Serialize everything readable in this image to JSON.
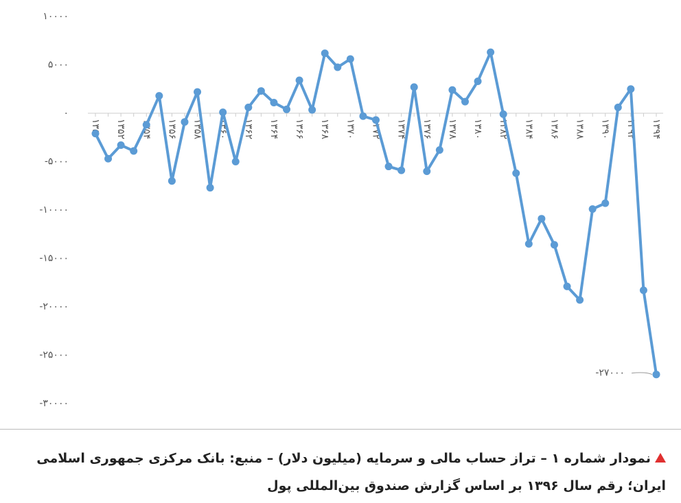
{
  "chart_data": {
    "type": "line",
    "categories": [
      "۱۳۵۰",
      null,
      "۱۳۵۲",
      null,
      "۱۳۵۴",
      null,
      "۱۳۵۶",
      null,
      "۱۳۵۸",
      null,
      "۱۳۶۰",
      null,
      "۱۳۶۲",
      null,
      "۱۳۶۴",
      null,
      "۱۳۶۶",
      null,
      "۱۳۶۸",
      null,
      "۱۳۷۰",
      null,
      "۱۳۷۲",
      null,
      "۱۳۷۴",
      null,
      "۱۳۷۶",
      null,
      "۱۳۷۸",
      null,
      "۱۳۸۰",
      null,
      "۱۳۸۲",
      null,
      "۱۳۸۴",
      null,
      "۱۳۸۶",
      null,
      "۱۳۸۸",
      null,
      "۱۳۹۰",
      null,
      "۱۳۹۲",
      null,
      "۱۳۹۴"
    ],
    "series": [
      {
        "color": "#5b9bd5",
        "values": [
          -2100,
          -4700,
          -3300,
          -3900,
          -1200,
          1800,
          -7000,
          -900,
          2200,
          -7700,
          100,
          -5000,
          600,
          2300,
          1100,
          400,
          3400,
          350,
          6200,
          4750,
          5600,
          -300,
          -700,
          -5500,
          -5900,
          2700,
          -6000,
          -3800,
          2400,
          1200,
          3300,
          6300,
          -100,
          -6200,
          -13500,
          -10900,
          -13600,
          -17900,
          -19300,
          -9900,
          -9300,
          600,
          2500,
          -18300,
          -27000
        ],
        "value_labels": [
          null,
          null,
          null,
          null,
          null,
          null,
          null,
          null,
          null,
          null,
          null,
          null,
          null,
          null,
          null,
          null,
          null,
          null,
          null,
          null,
          null,
          null,
          null,
          null,
          null,
          null,
          null,
          null,
          null,
          null,
          null,
          null,
          null,
          null,
          null,
          null,
          null,
          null,
          null,
          null,
          null,
          null,
          null,
          null,
          "-۲۷۰۰۰"
        ]
      }
    ],
    "ylim": [
      -30000,
      10000
    ],
    "yticks": [
      {
        "value": 10000,
        "label": "۱۰۰۰۰"
      },
      {
        "value": 5000,
        "label": "۵۰۰۰"
      },
      {
        "value": 0,
        "label": "۰"
      },
      {
        "value": -5000,
        "label": "-۵۰۰۰"
      },
      {
        "value": -10000,
        "label": "-۱۰۰۰۰"
      },
      {
        "value": -15000,
        "label": "-۱۵۰۰۰"
      },
      {
        "value": -20000,
        "label": "-۲۰۰۰۰"
      },
      {
        "value": -25000,
        "label": "-۲۵۰۰۰"
      },
      {
        "value": -30000,
        "label": "-۳۰۰۰۰"
      }
    ],
    "caption": "نمودار شماره ۱ – تراز حساب مالی و سرمایه (میلیون دلار) – منبع: بانک مرکزی جمهوری اسلامی ایران؛ رقم سال ۱۳۹۶ بر اساس گزارش صندوق بین‌المللی پول"
  }
}
